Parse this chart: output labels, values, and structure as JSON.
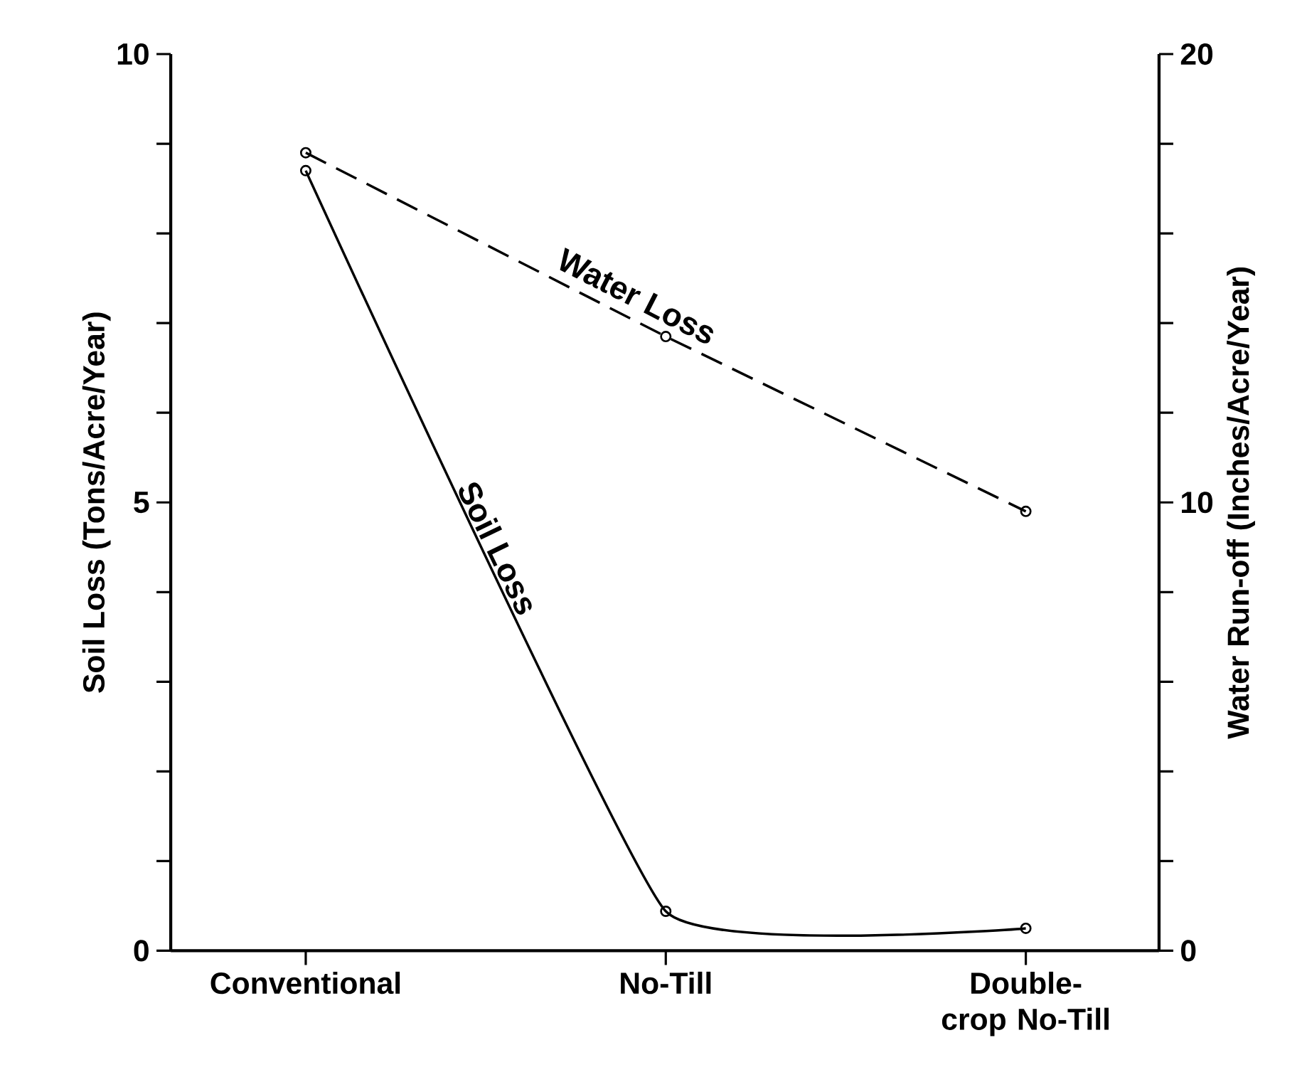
{
  "chart_data": {
    "type": "line",
    "categories": [
      "Conventional",
      "No-Till",
      "Double-crop No-Till"
    ],
    "ylabel": "Soil Loss (Tons/Acre/Year)",
    "y2label": "Water Run-off (Inches/Acre/Year)",
    "ylim": [
      0,
      10
    ],
    "yticks": [
      0,
      {
        "value": 1,
        "label": null
      },
      {
        "value": 2,
        "label": null
      },
      {
        "value": 3,
        "label": null
      },
      {
        "value": 4,
        "label": null
      },
      5,
      {
        "value": 6,
        "label": null
      },
      {
        "value": 7,
        "label": null
      },
      {
        "value": 8,
        "label": null
      },
      {
        "value": 9,
        "label": null
      },
      10
    ],
    "y2lim": [
      0,
      20
    ],
    "y2ticks": [
      0,
      {
        "value": 2,
        "label": null
      },
      {
        "value": 4,
        "label": null
      },
      {
        "value": 6,
        "label": null
      },
      {
        "value": 8,
        "label": null
      },
      10,
      {
        "value": 12,
        "label": null
      },
      {
        "value": 14,
        "label": null
      },
      {
        "value": 16,
        "label": null
      },
      {
        "value": 18,
        "label": null
      },
      20
    ],
    "marker": "circle",
    "grid": false,
    "legend": false,
    "series": [
      {
        "name": "Soil Loss",
        "color": "#000000",
        "values": [
          8.7,
          0.44,
          0.25
        ],
        "line_style": "solid"
      },
      {
        "name": "Water Loss",
        "color": "#000000",
        "values": [
          17.8,
          13.7,
          9.8
        ],
        "line_style": "dashed",
        "axis": "y2"
      }
    ]
  }
}
